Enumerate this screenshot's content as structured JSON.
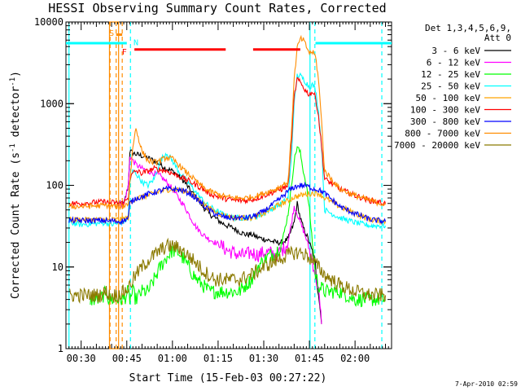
{
  "chart_data": {
    "type": "line",
    "title": "HESSI Observing Summary Count Rates, Corrected",
    "xlabel": "Start Time (15-Feb-03 00:27:22)",
    "ylabel_main": "Corrected Count Rate (s",
    "ylabel_exp1": "-1",
    "ylabel_mid": " detector",
    "ylabel_exp2": "-1",
    "ylabel_end": ")",
    "footer_stamp": "7-Apr-2010 02:59",
    "x_unit": "minutes from 00:00 UT on 15-Feb-03",
    "xlim": [
      25,
      132
    ],
    "ylim": [
      1,
      10000
    ],
    "yscale": "log",
    "grid": false,
    "x_ticks": [
      {
        "t": 30,
        "label": "00:30"
      },
      {
        "t": 45,
        "label": "00:45"
      },
      {
        "t": 60,
        "label": "01:00"
      },
      {
        "t": 75,
        "label": "01:15"
      },
      {
        "t": 90,
        "label": "01:30"
      },
      {
        "t": 105,
        "label": "01:45"
      },
      {
        "t": 120,
        "label": "02:00"
      }
    ],
    "y_ticks": [
      {
        "v": 1,
        "label": "1"
      },
      {
        "v": 10,
        "label": "10"
      },
      {
        "v": 100,
        "label": "100"
      },
      {
        "v": 1000,
        "label": "1000"
      },
      {
        "v": 10000,
        "label": "10000"
      }
    ],
    "legend": {
      "placement": "right",
      "header1": "Det 1,3,4,5,6,9,",
      "header2": "Att 0"
    },
    "series": [
      {
        "name": "3 - 6 keV",
        "color": "#000000",
        "x": [
          42,
          44,
          45.5,
          46,
          47,
          48,
          50,
          52,
          54,
          56,
          58,
          60,
          62,
          64,
          66,
          68,
          70,
          72,
          74,
          76,
          78,
          80,
          82,
          84,
          86,
          88,
          90,
          92,
          94,
          96,
          98,
          100,
          101,
          102,
          103,
          104,
          105,
          106,
          107,
          108,
          109
        ],
        "y": [
          60,
          58,
          100,
          260,
          250,
          240,
          230,
          215,
          200,
          180,
          160,
          150,
          130,
          110,
          85,
          70,
          55,
          45,
          40,
          35,
          32,
          30,
          27,
          25,
          25,
          23,
          22,
          21,
          20,
          20,
          22,
          35,
          60,
          40,
          30,
          25,
          20,
          15,
          10,
          5,
          2
        ]
      },
      {
        "name": "6 - 12 keV",
        "color": "#ff00ff",
        "x": [
          42,
          44,
          45.5,
          46,
          47,
          48,
          50,
          52,
          54,
          56,
          58,
          60,
          62,
          64,
          66,
          68,
          70,
          72,
          74,
          76,
          78,
          80,
          82,
          84,
          86,
          88,
          90,
          92,
          94,
          96,
          98,
          100,
          101,
          102,
          103,
          104,
          105,
          106,
          107,
          108,
          109
        ],
        "y": [
          60,
          58,
          100,
          230,
          200,
          180,
          160,
          150,
          140,
          130,
          110,
          90,
          70,
          55,
          40,
          30,
          25,
          22,
          20,
          18,
          16,
          15,
          14,
          14,
          15,
          14,
          15,
          15,
          14,
          16,
          20,
          55,
          45,
          35,
          28,
          22,
          16,
          12,
          8,
          5,
          2
        ]
      },
      {
        "name": "12 - 25 keV",
        "color": "#00ff00",
        "x": [
          33,
          36,
          38.5,
          39,
          40,
          42,
          44,
          45.5,
          46,
          47,
          48,
          50,
          52,
          54,
          56,
          58,
          60,
          62,
          64,
          66,
          68,
          70,
          72,
          74,
          76,
          78,
          80,
          82,
          84,
          86,
          88,
          90,
          92,
          94,
          96,
          98,
          99,
          100,
          101,
          102,
          103,
          104,
          105,
          106,
          107,
          108,
          110,
          115,
          120,
          125,
          130
        ],
        "y": [
          4,
          4,
          5,
          4,
          4,
          4,
          4,
          5,
          4,
          5,
          4,
          5,
          5,
          7,
          10,
          13,
          16,
          15,
          12,
          9,
          7,
          6,
          5,
          5,
          5,
          5,
          5,
          5,
          6,
          7,
          10,
          12,
          14,
          15,
          20,
          45,
          90,
          200,
          300,
          250,
          150,
          100,
          50,
          20,
          8,
          6,
          5,
          5,
          4,
          4,
          4
        ]
      },
      {
        "name": "25 - 50 keV",
        "color": "#00ffff",
        "x": [
          26,
          30,
          35,
          38.5,
          39,
          40,
          42,
          44,
          45.5,
          46,
          47,
          48,
          50,
          52,
          54,
          56,
          58,
          60,
          62,
          64,
          66,
          68,
          70,
          72,
          74,
          76,
          78,
          80,
          82,
          84,
          86,
          88,
          90,
          92,
          94,
          96,
          98,
          99,
          100,
          101,
          102,
          103,
          104,
          105,
          106,
          107,
          108,
          109,
          110,
          115,
          120,
          125,
          130
        ],
        "y": [
          35,
          33,
          34,
          35,
          34,
          33,
          34,
          36,
          40,
          110,
          150,
          140,
          110,
          100,
          120,
          200,
          250,
          200,
          150,
          120,
          100,
          80,
          65,
          55,
          50,
          45,
          42,
          40,
          40,
          40,
          40,
          42,
          45,
          50,
          55,
          60,
          70,
          200,
          1000,
          2200,
          2200,
          2000,
          1800,
          1600,
          1700,
          1500,
          800,
          300,
          50,
          40,
          35,
          32,
          32
        ]
      },
      {
        "name": "50 - 100 keV",
        "color": "#ffa500",
        "x": [
          26,
          30,
          35,
          38.5,
          39,
          40,
          42,
          44,
          45.5,
          46,
          47,
          48,
          50,
          52,
          54,
          56,
          58,
          60,
          62,
          64,
          66,
          68,
          70,
          72,
          74,
          76,
          78,
          80,
          82,
          84,
          86,
          88,
          90,
          92,
          94,
          96,
          98,
          100,
          102,
          104,
          106,
          108,
          110,
          115,
          120,
          125,
          130
        ],
        "y": [
          38,
          38,
          38,
          38,
          37,
          38,
          38,
          39,
          40,
          60,
          65,
          70,
          72,
          75,
          80,
          85,
          88,
          90,
          88,
          85,
          80,
          70,
          60,
          52,
          47,
          44,
          42,
          40,
          40,
          40,
          40,
          42,
          45,
          50,
          55,
          60,
          65,
          72,
          75,
          78,
          80,
          80,
          70,
          55,
          45,
          38,
          36
        ]
      },
      {
        "name": "100 - 300 keV",
        "color": "#ff0000",
        "x": [
          26,
          30,
          35,
          38.5,
          39,
          40,
          42,
          44,
          45.5,
          46,
          47,
          48,
          50,
          52,
          54,
          56,
          58,
          60,
          62,
          64,
          66,
          68,
          70,
          72,
          74,
          76,
          78,
          80,
          82,
          84,
          86,
          88,
          90,
          92,
          94,
          96,
          98,
          99,
          100,
          101,
          102,
          103,
          104,
          105,
          106,
          107,
          108,
          109,
          110,
          115,
          120,
          125,
          130
        ],
        "y": [
          60,
          60,
          62,
          63,
          60,
          62,
          60,
          61,
          70,
          120,
          140,
          150,
          140,
          150,
          160,
          155,
          150,
          140,
          130,
          120,
          110,
          100,
          90,
          80,
          75,
          70,
          68,
          66,
          65,
          65,
          67,
          70,
          75,
          80,
          85,
          90,
          100,
          300,
          1200,
          2000,
          1800,
          1600,
          1400,
          1300,
          1400,
          1200,
          700,
          300,
          120,
          90,
          75,
          65,
          60
        ]
      },
      {
        "name": "300 - 800 keV",
        "color": "#0000ff",
        "x": [
          26,
          30,
          35,
          38.5,
          39,
          40,
          42,
          44,
          45.5,
          46,
          47,
          48,
          50,
          52,
          54,
          56,
          58,
          60,
          62,
          64,
          66,
          68,
          70,
          72,
          74,
          76,
          78,
          80,
          82,
          84,
          86,
          88,
          90,
          92,
          94,
          96,
          98,
          100,
          102,
          104,
          106,
          108,
          110,
          115,
          120,
          125,
          130
        ],
        "y": [
          37,
          37,
          37,
          37,
          36,
          37,
          36,
          37,
          40,
          60,
          65,
          70,
          72,
          78,
          82,
          86,
          90,
          90,
          88,
          85,
          78,
          68,
          58,
          50,
          45,
          42,
          40,
          40,
          40,
          40,
          41,
          44,
          48,
          55,
          62,
          72,
          85,
          95,
          100,
          98,
          92,
          88,
          80,
          55,
          45,
          38,
          36
        ]
      },
      {
        "name": "800 - 7000 keV",
        "color": "#ff8c00",
        "x": [
          26,
          30,
          35,
          38.5,
          39,
          40,
          42,
          44,
          45.5,
          46,
          47,
          48,
          50,
          52,
          54,
          56,
          58,
          60,
          62,
          64,
          66,
          68,
          70,
          72,
          74,
          76,
          78,
          80,
          82,
          84,
          86,
          88,
          90,
          92,
          94,
          96,
          98,
          99,
          100,
          101,
          102,
          103,
          104,
          105,
          106,
          107,
          108,
          109,
          110,
          115,
          120,
          125,
          130
        ],
        "y": [
          55,
          55,
          56,
          57,
          55,
          56,
          55,
          56,
          60,
          110,
          300,
          500,
          260,
          200,
          190,
          200,
          220,
          210,
          180,
          150,
          130,
          110,
          95,
          85,
          80,
          75,
          72,
          70,
          70,
          70,
          72,
          75,
          80,
          85,
          90,
          100,
          110,
          400,
          2000,
          4800,
          6200,
          6000,
          5000,
          4200,
          4300,
          3800,
          2000,
          600,
          150,
          90,
          75,
          65,
          58
        ]
      },
      {
        "name": "7000 - 20000 keV",
        "color": "#8b7a00",
        "x": [
          26,
          30,
          33,
          36,
          38.5,
          39,
          40,
          42,
          44,
          45.5,
          46,
          47,
          48,
          50,
          52,
          54,
          56,
          58,
          60,
          62,
          64,
          66,
          68,
          70,
          72,
          74,
          76,
          78,
          80,
          82,
          84,
          86,
          88,
          90,
          92,
          94,
          96,
          98,
          100,
          102,
          104,
          106,
          108,
          110,
          115,
          120,
          125,
          130
        ],
        "y": [
          4.5,
          4.5,
          4.5,
          4.5,
          5,
          4.5,
          4.5,
          4.5,
          5,
          5.5,
          6,
          7,
          8,
          10,
          12,
          14,
          16,
          18,
          18,
          17,
          15,
          13,
          11,
          9,
          8,
          7,
          7,
          7,
          7,
          7,
          7.5,
          8,
          9,
          10,
          11,
          12,
          13,
          14,
          15,
          15,
          14,
          12,
          10,
          8,
          6,
          5,
          4.5,
          4.5
        ]
      }
    ],
    "markers": [
      {
        "t": 26,
        "style": "solid",
        "color": "#00ffff"
      },
      {
        "t": 39.5,
        "style": "dashed",
        "color": "#ff8c00"
      },
      {
        "t": 41.5,
        "style": "dashed",
        "color": "#ff8c00"
      },
      {
        "t": 43.5,
        "style": "dashed",
        "color": "#ff8c00"
      },
      {
        "t": 46.2,
        "style": "dashed",
        "color": "#00ffff"
      },
      {
        "t": 105.2,
        "style": "solid",
        "color": "#00ffff"
      },
      {
        "t": 106.8,
        "style": "dashed",
        "color": "#00ffff"
      },
      {
        "t": 128.8,
        "style": "dashed",
        "color": "#00ffff"
      }
    ],
    "saa_band": {
      "t0": 39.3,
      "t1": 42.3,
      "color": "#ff8c00"
    },
    "top_bars": [
      {
        "t0": 25,
        "t1": 45,
        "v": 5500,
        "color": "#00ffff"
      },
      {
        "t0": 47.5,
        "t1": 77.5,
        "v": 4600,
        "color": "#ff0000"
      },
      {
        "t0": 86.5,
        "t1": 102,
        "v": 4600,
        "color": "#ff0000"
      },
      {
        "t0": 107,
        "t1": 132,
        "v": 5500,
        "color": "#00ffff"
      },
      {
        "t0": 41.5,
        "t1": 43.5,
        "v": 7000,
        "color": "#ff8c00"
      }
    ],
    "bar_labels": [
      {
        "text": "S",
        "t": 39.2,
        "v": 6800,
        "color": "#ff8c00"
      },
      {
        "text": "F",
        "t": 43.4,
        "v": 4000,
        "color": "#ff0000"
      },
      {
        "text": "N",
        "t": 47.2,
        "v": 5200,
        "color": "#00ffff"
      }
    ]
  }
}
